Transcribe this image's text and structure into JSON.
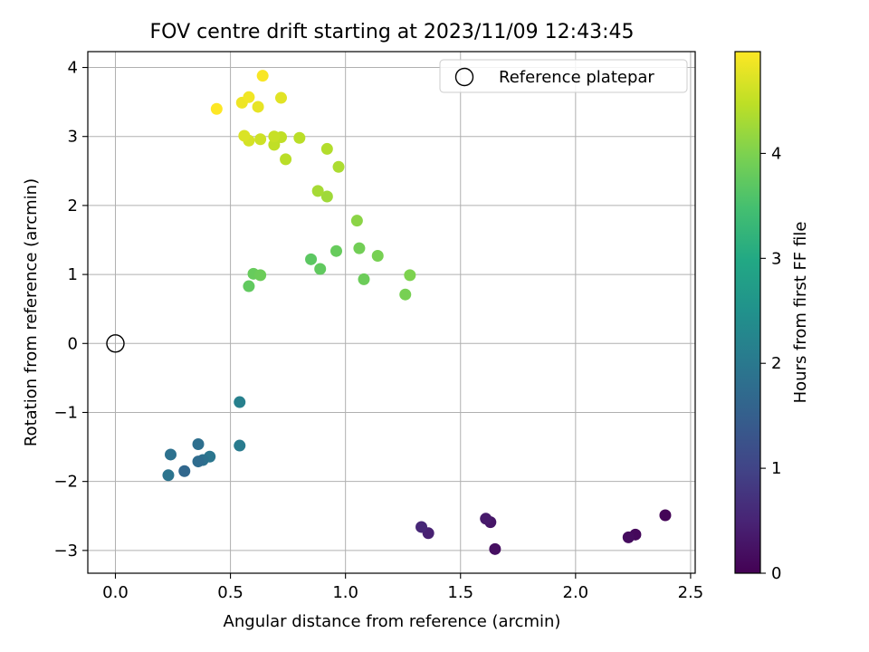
{
  "chart_data": {
    "type": "scatter",
    "title": "FOV centre drift starting at 2023/11/09 12:43:45",
    "xlabel": "Angular distance from reference (arcmin)",
    "ylabel": "Rotation from reference (arcmin)",
    "xlim": [
      -0.12,
      2.52
    ],
    "ylim": [
      -3.33,
      4.23
    ],
    "xticks": [
      0.0,
      0.5,
      1.0,
      1.5,
      2.0,
      2.5
    ],
    "xtick_labels": [
      "0.0",
      "0.5",
      "1.0",
      "1.5",
      "2.0",
      "2.5"
    ],
    "yticks": [
      -3,
      -2,
      -1,
      0,
      1,
      2,
      3,
      4
    ],
    "ytick_labels": [
      "−3",
      "−2",
      "−1",
      "0",
      "1",
      "2",
      "3",
      "4"
    ],
    "grid": true,
    "legend": {
      "placement": "top-right",
      "entries": [
        "Reference platepar"
      ]
    },
    "reference_point": {
      "x": 0.0,
      "y": 0.0,
      "label": "Reference platepar"
    },
    "colorbar": {
      "label": "Hours from first FF file",
      "colormap": "viridis",
      "min": 0,
      "max": 4.97,
      "ticks": [
        0,
        1,
        2,
        3,
        4
      ],
      "tick_labels": [
        "0",
        "1",
        "2",
        "3",
        "4"
      ]
    },
    "points": [
      {
        "x": 2.39,
        "y": -2.49,
        "c": 0.05
      },
      {
        "x": 2.26,
        "y": -2.77,
        "c": 0.1
      },
      {
        "x": 2.23,
        "y": -2.81,
        "c": 0.15
      },
      {
        "x": 1.65,
        "y": -2.98,
        "c": 0.2
      },
      {
        "x": 1.63,
        "y": -2.59,
        "c": 0.28
      },
      {
        "x": 1.61,
        "y": -2.54,
        "c": 0.35
      },
      {
        "x": 1.36,
        "y": -2.75,
        "c": 0.45
      },
      {
        "x": 1.33,
        "y": -2.66,
        "c": 0.55
      },
      {
        "x": 0.54,
        "y": -0.85,
        "c": 2.15
      },
      {
        "x": 0.54,
        "y": -1.48,
        "c": 2.05
      },
      {
        "x": 0.41,
        "y": -1.64,
        "c": 1.95
      },
      {
        "x": 0.38,
        "y": -1.69,
        "c": 1.85
      },
      {
        "x": 0.36,
        "y": -1.71,
        "c": 1.75
      },
      {
        "x": 0.36,
        "y": -1.46,
        "c": 1.8
      },
      {
        "x": 0.3,
        "y": -1.85,
        "c": 1.65
      },
      {
        "x": 0.24,
        "y": -1.61,
        "c": 1.85
      },
      {
        "x": 0.23,
        "y": -1.91,
        "c": 1.9
      },
      {
        "x": 0.58,
        "y": 0.83,
        "c": 3.75
      },
      {
        "x": 0.6,
        "y": 1.01,
        "c": 3.8
      },
      {
        "x": 0.63,
        "y": 0.99,
        "c": 3.85
      },
      {
        "x": 0.85,
        "y": 1.22,
        "c": 3.7
      },
      {
        "x": 0.89,
        "y": 1.08,
        "c": 3.75
      },
      {
        "x": 0.96,
        "y": 1.34,
        "c": 3.8
      },
      {
        "x": 1.06,
        "y": 1.38,
        "c": 3.9
      },
      {
        "x": 1.08,
        "y": 0.93,
        "c": 3.85
      },
      {
        "x": 1.14,
        "y": 1.27,
        "c": 3.95
      },
      {
        "x": 1.26,
        "y": 0.71,
        "c": 3.95
      },
      {
        "x": 1.28,
        "y": 0.99,
        "c": 4.0
      },
      {
        "x": 1.05,
        "y": 1.78,
        "c": 4.1
      },
      {
        "x": 0.92,
        "y": 2.13,
        "c": 4.25
      },
      {
        "x": 0.88,
        "y": 2.21,
        "c": 4.3
      },
      {
        "x": 0.97,
        "y": 2.56,
        "c": 4.35
      },
      {
        "x": 0.92,
        "y": 2.82,
        "c": 4.4
      },
      {
        "x": 0.8,
        "y": 2.98,
        "c": 4.45
      },
      {
        "x": 0.74,
        "y": 2.67,
        "c": 4.45
      },
      {
        "x": 0.72,
        "y": 2.99,
        "c": 4.5
      },
      {
        "x": 0.69,
        "y": 2.88,
        "c": 4.5
      },
      {
        "x": 0.69,
        "y": 3.0,
        "c": 4.55
      },
      {
        "x": 0.63,
        "y": 2.96,
        "c": 4.6
      },
      {
        "x": 0.58,
        "y": 2.94,
        "c": 4.65
      },
      {
        "x": 0.56,
        "y": 3.01,
        "c": 4.7
      },
      {
        "x": 0.72,
        "y": 3.56,
        "c": 4.75
      },
      {
        "x": 0.62,
        "y": 3.43,
        "c": 4.8
      },
      {
        "x": 0.55,
        "y": 3.49,
        "c": 4.85
      },
      {
        "x": 0.58,
        "y": 3.57,
        "c": 4.88
      },
      {
        "x": 0.64,
        "y": 3.88,
        "c": 4.93
      },
      {
        "x": 0.44,
        "y": 3.4,
        "c": 4.97
      }
    ]
  }
}
